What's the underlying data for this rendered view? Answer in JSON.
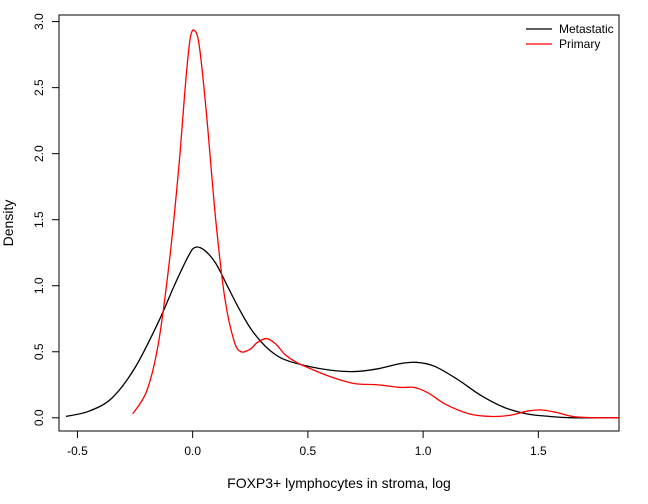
{
  "chart_data": {
    "type": "line",
    "title": "",
    "xlabel": "FOXP3+ lymphocytes in stroma, log",
    "ylabel": "Density",
    "xlim": [
      -0.58,
      1.85
    ],
    "ylim": [
      -0.1,
      3.05
    ],
    "x_ticks": [
      -0.5,
      0.0,
      0.5,
      1.0,
      1.5
    ],
    "x_tick_labels": [
      "-0.5",
      "0.0",
      "0.5",
      "1.0",
      "1.5"
    ],
    "y_ticks": [
      0.0,
      0.5,
      1.0,
      1.5,
      2.0,
      2.5,
      3.0
    ],
    "y_tick_labels": [
      "0.0",
      "0.5",
      "1.0",
      "1.5",
      "2.0",
      "2.5",
      "3.0"
    ],
    "grid": false,
    "legend_position": "top-right",
    "series": [
      {
        "name": "Metastatic",
        "color": "#000000",
        "points": [
          [
            -0.55,
            0.01
          ],
          [
            -0.45,
            0.05
          ],
          [
            -0.35,
            0.15
          ],
          [
            -0.25,
            0.38
          ],
          [
            -0.15,
            0.72
          ],
          [
            -0.08,
            1.0
          ],
          [
            -0.02,
            1.22
          ],
          [
            0.01,
            1.29
          ],
          [
            0.05,
            1.27
          ],
          [
            0.1,
            1.17
          ],
          [
            0.15,
            1.0
          ],
          [
            0.2,
            0.83
          ],
          [
            0.25,
            0.68
          ],
          [
            0.3,
            0.57
          ],
          [
            0.35,
            0.49
          ],
          [
            0.4,
            0.44
          ],
          [
            0.5,
            0.39
          ],
          [
            0.6,
            0.36
          ],
          [
            0.7,
            0.35
          ],
          [
            0.8,
            0.37
          ],
          [
            0.9,
            0.41
          ],
          [
            0.97,
            0.42
          ],
          [
            1.05,
            0.39
          ],
          [
            1.15,
            0.29
          ],
          [
            1.25,
            0.17
          ],
          [
            1.35,
            0.08
          ],
          [
            1.45,
            0.03
          ],
          [
            1.55,
            0.01
          ],
          [
            1.65,
            0.0
          ],
          [
            1.75,
            0.0
          ],
          [
            1.85,
            0.0
          ]
        ]
      },
      {
        "name": "Primary",
        "color": "#ff0000",
        "points": [
          [
            -0.26,
            0.03
          ],
          [
            -0.2,
            0.2
          ],
          [
            -0.15,
            0.55
          ],
          [
            -0.1,
            1.2
          ],
          [
            -0.06,
            1.9
          ],
          [
            -0.03,
            2.55
          ],
          [
            -0.01,
            2.88
          ],
          [
            0.01,
            2.93
          ],
          [
            0.03,
            2.8
          ],
          [
            0.06,
            2.3
          ],
          [
            0.1,
            1.5
          ],
          [
            0.14,
            0.9
          ],
          [
            0.18,
            0.58
          ],
          [
            0.21,
            0.5
          ],
          [
            0.25,
            0.52
          ],
          [
            0.28,
            0.57
          ],
          [
            0.32,
            0.6
          ],
          [
            0.36,
            0.56
          ],
          [
            0.4,
            0.48
          ],
          [
            0.45,
            0.42
          ],
          [
            0.5,
            0.38
          ],
          [
            0.6,
            0.31
          ],
          [
            0.7,
            0.26
          ],
          [
            0.8,
            0.25
          ],
          [
            0.9,
            0.23
          ],
          [
            0.96,
            0.23
          ],
          [
            1.02,
            0.19
          ],
          [
            1.1,
            0.1
          ],
          [
            1.2,
            0.03
          ],
          [
            1.3,
            0.01
          ],
          [
            1.38,
            0.02
          ],
          [
            1.45,
            0.05
          ],
          [
            1.51,
            0.06
          ],
          [
            1.58,
            0.04
          ],
          [
            1.65,
            0.01
          ],
          [
            1.75,
            0.0
          ],
          [
            1.85,
            0.0
          ]
        ]
      }
    ]
  }
}
